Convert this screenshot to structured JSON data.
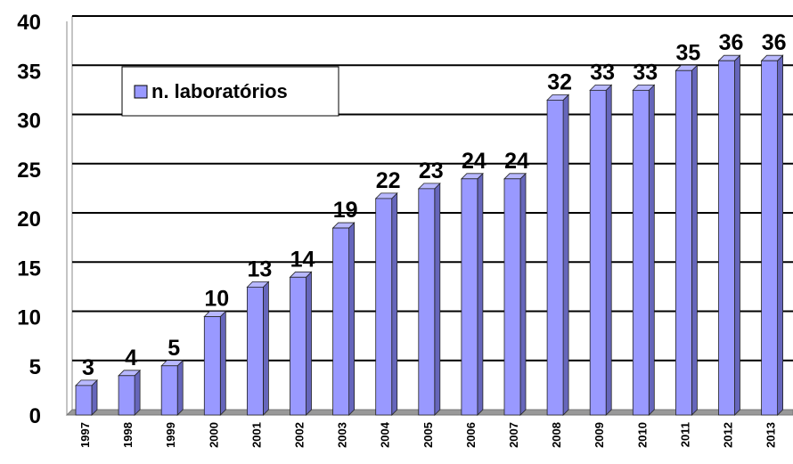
{
  "chart_data": {
    "type": "bar",
    "categories": [
      "1997",
      "1998",
      "1999",
      "2000",
      "2001",
      "2002",
      "2003",
      "2004",
      "2005",
      "2006",
      "2007",
      "2008",
      "2009",
      "2010",
      "2011",
      "2012",
      "2013"
    ],
    "series": [
      {
        "name": "n. laboratórios",
        "color": "#9999ff",
        "values": [
          3,
          4,
          5,
          10,
          13,
          14,
          19,
          22,
          23,
          24,
          24,
          32,
          33,
          33,
          35,
          36,
          36
        ]
      }
    ],
    "ylim": [
      0,
      40
    ],
    "yticks": [
      0,
      5,
      10,
      15,
      20,
      25,
      30,
      35,
      40
    ],
    "grid": true,
    "legend": "upper left"
  }
}
